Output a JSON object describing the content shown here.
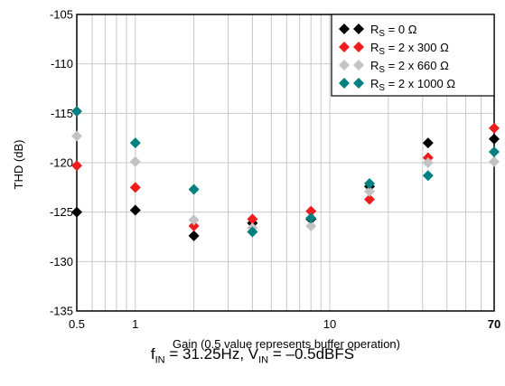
{
  "chart_data": {
    "type": "scatter",
    "xlabel": "Gain (0.5 value represents buffer operation)",
    "ylabel": "THD (dB)",
    "xscale": "log",
    "xlim": [
      0.5,
      70
    ],
    "ylim": [
      -135,
      -105
    ],
    "x_ticks": [
      {
        "value": 0.5,
        "label": "0.5"
      },
      {
        "value": 1,
        "label": "1"
      },
      {
        "value": 10,
        "label": "10"
      },
      {
        "value": 70,
        "label": "70"
      }
    ],
    "y_ticks": [
      -105,
      -110,
      -115,
      -120,
      -125,
      -130,
      -135
    ],
    "grid": true,
    "legend_position": "top-right",
    "x": [
      0.5,
      1,
      2,
      4,
      8,
      16,
      32,
      70
    ],
    "series": [
      {
        "name": "RS = 0 Ω",
        "label_main": "R",
        "label_sub": "S",
        "label_rest": " = 0 Ω",
        "color": "#000000",
        "values": [
          -125.0,
          -124.8,
          -127.4,
          -126.1,
          -125.7,
          -122.4,
          -118.0,
          -117.6
        ]
      },
      {
        "name": "RS = 2 x 300 Ω",
        "label_main": "R",
        "label_sub": "S",
        "label_rest": " = 2 x 300 Ω",
        "color": "#ee1c1c",
        "values": [
          -120.3,
          -122.5,
          -126.4,
          -125.7,
          -124.9,
          -123.7,
          -119.5,
          -116.5
        ]
      },
      {
        "name": "RS = 2 x 660 Ω",
        "label_main": "R",
        "label_sub": "S",
        "label_rest": " = 2 x 660 Ω",
        "color": "#c3c3c3",
        "values": [
          -117.3,
          -119.9,
          -125.8,
          -126.6,
          -126.4,
          -122.9,
          -120.0,
          -119.9
        ]
      },
      {
        "name": "RS = 2 x 1000 Ω",
        "label_main": "R",
        "label_sub": "S",
        "label_rest": " = 2 x 1000 Ω",
        "color": "#008080",
        "values": [
          -114.8,
          -118.0,
          -122.7,
          -127.0,
          -125.6,
          -122.1,
          -121.3,
          -118.9
        ]
      }
    ]
  },
  "caption": {
    "f": "f",
    "f_sub": "IN",
    "f_rest": " = 31.25Hz, V",
    "v_sub": "IN",
    "v_rest": " = –0.5dBFS"
  }
}
